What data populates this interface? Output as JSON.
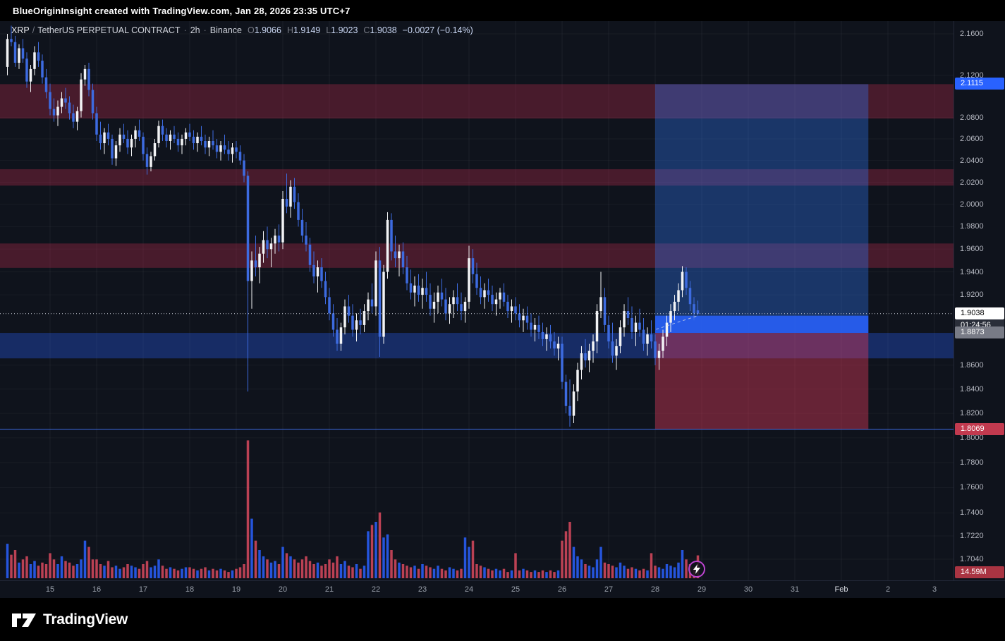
{
  "attribution": "BlueOriginInsight created with TradingView.com, Jan 28, 2026 23:35 UTC+7",
  "header": {
    "symbol": "XRP",
    "separator": "/",
    "description": "TetherUS PERPETUAL CONTRACT",
    "dot": "·",
    "timeframe": "2h",
    "exchange": "Binance",
    "ohlc": {
      "o_label": "O",
      "o": "1.9066",
      "h_label": "H",
      "h": "1.9149",
      "l_label": "L",
      "l": "1.9023",
      "c_label": "C",
      "c": "1.9038",
      "change": "−0.0027 (−0.14%)"
    }
  },
  "logo": {
    "brand": "TradingView"
  },
  "chart_data": {
    "type": "candlestick",
    "title": "XRP / TetherUS PERPETUAL CONTRACT · 2h · Binance",
    "interval": "2h",
    "scale": "log",
    "price_range": [
      1.7,
      2.17
    ],
    "x_range": [
      "Jan 14 02:00",
      "Feb 3"
    ],
    "grid": true,
    "colors": {
      "up": "#f2f3f5",
      "down": "#3d6be0",
      "vol_up": "#2962ff",
      "vol_down": "#d94a5e"
    },
    "price_axis_ticks": [
      "2.1600",
      "2.1200",
      "2.0800",
      "2.0600",
      "2.0400",
      "2.0200",
      "2.0000",
      "1.9800",
      "1.9600",
      "1.9400",
      "1.9200",
      "1.8600",
      "1.8400",
      "1.8200",
      "1.8000",
      "1.7800",
      "1.7600",
      "1.7400",
      "1.7220",
      "1.7040"
    ],
    "time_axis": [
      {
        "label": "15",
        "d": 1
      },
      {
        "label": "16",
        "d": 2
      },
      {
        "label": "17",
        "d": 3
      },
      {
        "label": "18",
        "d": 4
      },
      {
        "label": "19",
        "d": 5
      },
      {
        "label": "20",
        "d": 6
      },
      {
        "label": "21",
        "d": 7
      },
      {
        "label": "22",
        "d": 8
      },
      {
        "label": "23",
        "d": 9
      },
      {
        "label": "24",
        "d": 10
      },
      {
        "label": "25",
        "d": 11
      },
      {
        "label": "26",
        "d": 12
      },
      {
        "label": "27",
        "d": 13
      },
      {
        "label": "28",
        "d": 14
      },
      {
        "label": "29",
        "d": 15
      },
      {
        "label": "30",
        "d": 16
      },
      {
        "label": "31",
        "d": 17
      },
      {
        "label": "Feb",
        "d": 18,
        "major": true
      },
      {
        "label": "2",
        "d": 19
      },
      {
        "label": "3",
        "d": 20
      }
    ],
    "zones": [
      {
        "name": "supply-zone-1",
        "from": 2.079,
        "to": 2.1115,
        "color": "rgba(176,42,74,0.36)"
      },
      {
        "name": "supply-zone-2",
        "from": 2.017,
        "to": 2.032,
        "color": "rgba(176,42,74,0.36)"
      },
      {
        "name": "supply-zone-3",
        "from": 1.9435,
        "to": 1.965,
        "color": "rgba(176,42,74,0.36)"
      },
      {
        "name": "demand-zone",
        "from": 1.8657,
        "to": 1.8873,
        "color": "rgba(41,98,255,0.32)"
      }
    ],
    "support_line": {
      "price": 1.8069,
      "color": "#3d6be0"
    },
    "position": {
      "target": 2.1115,
      "entry": 1.8873,
      "stop": 1.8069,
      "entry_zone_top": 1.902,
      "time_start_day": 14.0,
      "time_end_day": 18.58,
      "target_color": "rgba(49,121,245,0.35)",
      "stop_color": "rgba(224,58,90,0.42)",
      "entry_zone_color": "rgba(41,98,255,0.85)"
    },
    "trendline": {
      "x1_day": 14.02,
      "p1": 1.8903,
      "x2_day": 14.9,
      "p2": 1.9018,
      "color": "rgba(215,220,230,0.8)"
    },
    "axis_labels": [
      {
        "text": "2.1115",
        "price": 2.1115,
        "bg": "#2962ff",
        "fg": "#ffffff"
      },
      {
        "text": "1.9038",
        "price": 1.9038,
        "bg": "#ffffff",
        "fg": "#000000",
        "countdown": "01:24:56"
      },
      {
        "text": "1.8873",
        "price": 1.8873,
        "bg": "#787b86",
        "fg": "#ffffff"
      },
      {
        "text": "1.8069",
        "price": 1.8069,
        "bg": "#c23a4f",
        "fg": "#ffffff"
      }
    ],
    "last": {
      "price": "1.9038",
      "countdown": "01:24:56",
      "open": 1.9066,
      "high": 1.9149,
      "low": 1.9023,
      "close": 1.9038,
      "change": -0.0027,
      "change_pct": -0.14,
      "volume_label": "14.59M",
      "volume_bg": "#a93442"
    },
    "volume_unit": "M",
    "candles": [
      [
        2.128,
        2.16,
        2.12,
        2.155
      ],
      [
        2.155,
        2.168,
        2.148,
        2.152
      ],
      [
        2.152,
        2.158,
        2.128,
        2.132
      ],
      [
        2.132,
        2.15,
        2.126,
        2.146
      ],
      [
        2.146,
        2.155,
        2.132,
        2.136
      ],
      [
        2.136,
        2.142,
        2.108,
        2.114
      ],
      [
        2.114,
        2.13,
        2.104,
        2.126
      ],
      [
        2.126,
        2.148,
        2.12,
        2.142
      ],
      [
        2.142,
        2.152,
        2.128,
        2.134
      ],
      [
        2.134,
        2.14,
        2.112,
        2.118
      ],
      [
        2.118,
        2.126,
        2.098,
        2.104
      ],
      [
        2.104,
        2.112,
        2.082,
        2.088
      ],
      [
        2.088,
        2.098,
        2.076,
        2.082
      ],
      [
        2.082,
        2.096,
        2.072,
        2.09
      ],
      [
        2.09,
        2.104,
        2.084,
        2.098
      ],
      [
        2.098,
        2.108,
        2.088,
        2.094
      ],
      [
        2.094,
        2.1,
        2.078,
        2.084
      ],
      [
        2.084,
        2.092,
        2.07,
        2.076
      ],
      [
        2.076,
        2.09,
        2.068,
        2.086
      ],
      [
        2.086,
        2.122,
        2.08,
        2.116
      ],
      [
        2.116,
        2.13,
        2.11,
        2.126
      ],
      [
        2.126,
        2.132,
        2.1,
        2.106
      ],
      [
        2.106,
        2.112,
        2.078,
        2.084
      ],
      [
        2.084,
        2.09,
        2.058,
        2.064
      ],
      [
        2.064,
        2.076,
        2.05,
        2.056
      ],
      [
        2.056,
        2.07,
        2.046,
        2.066
      ],
      [
        2.066,
        2.074,
        2.054,
        2.06
      ],
      [
        2.06,
        2.064,
        2.036,
        2.042
      ],
      [
        2.042,
        2.058,
        2.035,
        2.054
      ],
      [
        2.054,
        2.07,
        2.048,
        2.064
      ],
      [
        2.064,
        2.074,
        2.056,
        2.06
      ],
      [
        2.06,
        2.068,
        2.046,
        2.052
      ],
      [
        2.052,
        2.064,
        2.044,
        2.06
      ],
      [
        2.06,
        2.072,
        2.052,
        2.068
      ],
      [
        2.068,
        2.078,
        2.058,
        2.062
      ],
      [
        2.062,
        2.066,
        2.04,
        2.046
      ],
      [
        2.046,
        2.052,
        2.027,
        2.034
      ],
      [
        2.034,
        2.048,
        2.03,
        2.044
      ],
      [
        2.044,
        2.06,
        2.04,
        2.056
      ],
      [
        2.056,
        2.077,
        2.052,
        2.072
      ],
      [
        2.072,
        2.078,
        2.058,
        2.064
      ],
      [
        2.064,
        2.07,
        2.052,
        2.058
      ],
      [
        2.058,
        2.068,
        2.05,
        2.064
      ],
      [
        2.064,
        2.072,
        2.056,
        2.06
      ],
      [
        2.06,
        2.066,
        2.048,
        2.054
      ],
      [
        2.054,
        2.064,
        2.046,
        2.06
      ],
      [
        2.06,
        2.07,
        2.054,
        2.066
      ],
      [
        2.066,
        2.074,
        2.058,
        2.062
      ],
      [
        2.062,
        2.068,
        2.05,
        2.056
      ],
      [
        2.056,
        2.066,
        2.048,
        2.062
      ],
      [
        2.062,
        2.072,
        2.054,
        2.058
      ],
      [
        2.058,
        2.064,
        2.046,
        2.052
      ],
      [
        2.052,
        2.062,
        2.044,
        2.058
      ],
      [
        2.058,
        2.068,
        2.05,
        2.054
      ],
      [
        2.054,
        2.06,
        2.042,
        2.048
      ],
      [
        2.048,
        2.058,
        2.04,
        2.054
      ],
      [
        2.054,
        2.064,
        2.046,
        2.05
      ],
      [
        2.05,
        2.058,
        2.04,
        2.046
      ],
      [
        2.046,
        2.056,
        2.038,
        2.052
      ],
      [
        2.052,
        2.058,
        2.042,
        2.048
      ],
      [
        2.048,
        2.054,
        2.036,
        2.04
      ],
      [
        2.04,
        2.046,
        2.02,
        2.026
      ],
      [
        2.026,
        2.03,
        1.838,
        1.932
      ],
      [
        1.932,
        1.958,
        1.908,
        1.95
      ],
      [
        1.95,
        1.972,
        1.936,
        1.944
      ],
      [
        1.944,
        1.962,
        1.93,
        1.956
      ],
      [
        1.956,
        1.976,
        1.948,
        1.968
      ],
      [
        1.968,
        1.98,
        1.952,
        1.96
      ],
      [
        1.96,
        1.97,
        1.944,
        1.965
      ],
      [
        1.965,
        1.978,
        1.956,
        1.972
      ],
      [
        1.972,
        1.982,
        1.958,
        1.966
      ],
      [
        1.966,
        2.012,
        1.96,
        2.005
      ],
      [
        2.005,
        2.028,
        1.992,
        1.998
      ],
      [
        1.998,
        2.022,
        1.988,
        2.016
      ],
      [
        2.016,
        2.024,
        1.996,
        2.002
      ],
      [
        2.002,
        2.01,
        1.98,
        1.986
      ],
      [
        1.986,
        1.996,
        1.966,
        1.972
      ],
      [
        1.972,
        1.984,
        1.958,
        1.964
      ],
      [
        1.964,
        1.97,
        1.94,
        1.946
      ],
      [
        1.946,
        1.958,
        1.93,
        1.936
      ],
      [
        1.936,
        1.95,
        1.922,
        1.944
      ],
      [
        1.944,
        1.952,
        1.926,
        1.932
      ],
      [
        1.932,
        1.94,
        1.912,
        1.918
      ],
      [
        1.918,
        1.926,
        1.898,
        1.904
      ],
      [
        1.904,
        1.912,
        1.884,
        1.89
      ],
      [
        1.89,
        1.9,
        1.872,
        1.878
      ],
      [
        1.878,
        1.896,
        1.872,
        1.892
      ],
      [
        1.892,
        1.916,
        1.886,
        1.91
      ],
      [
        1.91,
        1.92,
        1.896,
        1.902
      ],
      [
        1.902,
        1.912,
        1.884,
        1.89
      ],
      [
        1.89,
        1.904,
        1.88,
        1.898
      ],
      [
        1.898,
        1.908,
        1.886,
        1.894
      ],
      [
        1.894,
        1.912,
        1.888,
        1.906
      ],
      [
        1.906,
        1.922,
        1.898,
        1.916
      ],
      [
        1.916,
        1.93,
        1.904,
        1.91
      ],
      [
        1.91,
        1.958,
        1.902,
        1.95
      ],
      [
        1.95,
        1.962,
        1.867,
        1.884
      ],
      [
        1.884,
        1.946,
        1.878,
        1.94
      ],
      [
        1.94,
        1.993,
        1.934,
        1.986
      ],
      [
        1.986,
        1.992,
        1.95,
        1.958
      ],
      [
        1.958,
        1.972,
        1.944,
        1.952
      ],
      [
        1.952,
        1.964,
        1.936,
        1.958
      ],
      [
        1.958,
        1.966,
        1.938,
        1.944
      ],
      [
        1.944,
        1.954,
        1.924,
        1.93
      ],
      [
        1.93,
        1.942,
        1.916,
        1.922
      ],
      [
        1.922,
        1.936,
        1.91,
        1.928
      ],
      [
        1.928,
        1.938,
        1.914,
        1.92
      ],
      [
        1.92,
        1.934,
        1.908,
        1.926
      ],
      [
        1.926,
        1.94,
        1.914,
        1.92
      ],
      [
        1.92,
        1.93,
        1.902,
        1.908
      ],
      [
        1.908,
        1.922,
        1.896,
        1.914
      ],
      [
        1.914,
        1.928,
        1.904,
        1.922
      ],
      [
        1.922,
        1.934,
        1.91,
        1.916
      ],
      [
        1.916,
        1.926,
        1.898,
        1.904
      ],
      [
        1.904,
        1.918,
        1.895,
        1.912
      ],
      [
        1.912,
        1.924,
        1.9,
        1.918
      ],
      [
        1.918,
        1.93,
        1.906,
        1.912
      ],
      [
        1.912,
        1.922,
        1.898,
        1.906
      ],
      [
        1.906,
        1.918,
        1.896,
        1.914
      ],
      [
        1.914,
        1.963,
        1.908,
        1.952
      ],
      [
        1.952,
        1.96,
        1.93,
        1.938
      ],
      [
        1.938,
        1.948,
        1.92,
        1.926
      ],
      [
        1.926,
        1.936,
        1.912,
        1.918
      ],
      [
        1.918,
        1.93,
        1.908,
        1.924
      ],
      [
        1.924,
        1.934,
        1.914,
        1.92
      ],
      [
        1.92,
        1.928,
        1.906,
        1.912
      ],
      [
        1.912,
        1.922,
        1.902,
        1.916
      ],
      [
        1.916,
        1.926,
        1.908,
        1.922
      ],
      [
        1.922,
        1.93,
        1.91,
        1.914
      ],
      [
        1.914,
        1.92,
        1.9,
        1.906
      ],
      [
        1.906,
        1.916,
        1.896,
        1.91
      ],
      [
        1.91,
        1.918,
        1.898,
        1.904
      ],
      [
        1.904,
        1.912,
        1.892,
        1.898
      ],
      [
        1.898,
        1.908,
        1.888,
        1.902
      ],
      [
        1.902,
        1.91,
        1.89,
        1.896
      ],
      [
        1.896,
        1.904,
        1.884,
        1.89
      ],
      [
        1.89,
        1.9,
        1.88,
        1.894
      ],
      [
        1.894,
        1.902,
        1.882,
        1.888
      ],
      [
        1.888,
        1.896,
        1.876,
        1.882
      ],
      [
        1.882,
        1.892,
        1.872,
        1.886
      ],
      [
        1.886,
        1.894,
        1.874,
        1.88
      ],
      [
        1.88,
        1.888,
        1.868,
        1.874
      ],
      [
        1.874,
        1.884,
        1.864,
        1.878
      ],
      [
        1.878,
        1.884,
        1.84,
        1.846
      ],
      [
        1.846,
        1.852,
        1.82,
        1.826
      ],
      [
        1.826,
        1.848,
        1.809,
        1.818
      ],
      [
        1.818,
        1.844,
        1.812,
        1.838
      ],
      [
        1.838,
        1.862,
        1.83,
        1.856
      ],
      [
        1.856,
        1.876,
        1.848,
        1.87
      ],
      [
        1.87,
        1.882,
        1.858,
        1.864
      ],
      [
        1.864,
        1.878,
        1.854,
        1.872
      ],
      [
        1.872,
        1.886,
        1.862,
        1.88
      ],
      [
        1.88,
        1.912,
        1.87,
        1.906
      ],
      [
        1.906,
        1.94,
        1.9,
        1.918
      ],
      [
        1.918,
        1.926,
        1.888,
        1.894
      ],
      [
        1.894,
        1.902,
        1.874,
        1.88
      ],
      [
        1.88,
        1.896,
        1.862,
        1.868
      ],
      [
        1.868,
        1.882,
        1.856,
        1.876
      ],
      [
        1.876,
        1.898,
        1.87,
        1.892
      ],
      [
        1.892,
        1.912,
        1.884,
        1.906
      ],
      [
        1.906,
        1.918,
        1.894,
        1.9
      ],
      [
        1.9,
        1.91,
        1.882,
        1.888
      ],
      [
        1.888,
        1.902,
        1.876,
        1.896
      ],
      [
        1.896,
        1.908,
        1.884,
        1.89
      ],
      [
        1.89,
        1.9,
        1.872,
        1.878
      ],
      [
        1.878,
        1.892,
        1.868,
        1.886
      ],
      [
        1.886,
        1.898,
        1.874,
        1.88
      ],
      [
        1.88,
        1.886,
        1.86,
        1.866
      ],
      [
        1.866,
        1.878,
        1.856,
        1.872
      ],
      [
        1.872,
        1.89,
        1.866,
        1.884
      ],
      [
        1.884,
        1.902,
        1.876,
        1.896
      ],
      [
        1.896,
        1.912,
        1.888,
        1.906
      ],
      [
        1.906,
        1.92,
        1.898,
        1.914
      ],
      [
        1.914,
        1.93,
        1.906,
        1.924
      ],
      [
        1.924,
        1.945,
        1.918,
        1.94
      ],
      [
        1.94,
        1.944,
        1.92,
        1.926
      ],
      [
        1.926,
        1.932,
        1.906,
        1.912
      ],
      [
        1.912,
        1.918,
        1.898,
        1.904
      ],
      [
        1.9066,
        1.9149,
        1.9023,
        1.9038
      ]
    ],
    "volumes": [
      22,
      15,
      18,
      10,
      12,
      14,
      9,
      11,
      8,
      10,
      9,
      16,
      12,
      9,
      14,
      11,
      10,
      8,
      9,
      12,
      24,
      20,
      12,
      12,
      9,
      8,
      11,
      7,
      8,
      6,
      7,
      9,
      8,
      7,
      6,
      9,
      11,
      7,
      8,
      12,
      8,
      6,
      7,
      6,
      5,
      6,
      7,
      7,
      6,
      5,
      6,
      7,
      5,
      6,
      5,
      6,
      5,
      4,
      5,
      6,
      7,
      9,
      88,
      38,
      24,
      18,
      14,
      12,
      10,
      11,
      9,
      20,
      16,
      14,
      12,
      10,
      12,
      14,
      11,
      9,
      10,
      8,
      9,
      12,
      10,
      14,
      9,
      11,
      8,
      7,
      9,
      6,
      8,
      30,
      34,
      36,
      42,
      26,
      28,
      18,
      12,
      10,
      9,
      8,
      7,
      8,
      6,
      9,
      8,
      7,
      6,
      8,
      6,
      5,
      7,
      6,
      5,
      6,
      26,
      20,
      24,
      9,
      8,
      7,
      6,
      5,
      6,
      5,
      6,
      4,
      5,
      16,
      5,
      6,
      5,
      4,
      5,
      4,
      5,
      4,
      5,
      4,
      5,
      24,
      30,
      36,
      20,
      14,
      12,
      9,
      8,
      7,
      12,
      20,
      10,
      9,
      8,
      7,
      10,
      8,
      6,
      7,
      6,
      5,
      6,
      5,
      16,
      8,
      7,
      6,
      9,
      8,
      7,
      10,
      18,
      12,
      9,
      7,
      14.59
    ]
  }
}
